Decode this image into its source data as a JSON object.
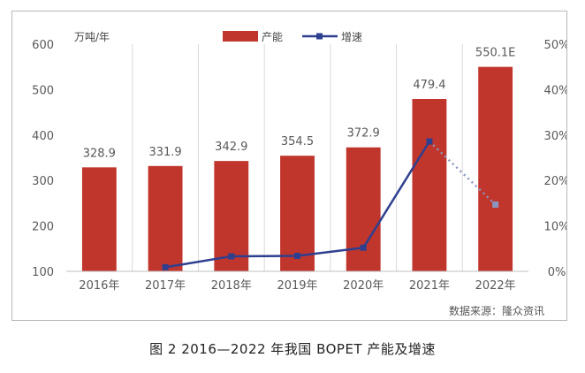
{
  "caption": "图 2  2016—2022 年我国 BOPET 产能及增速",
  "source": "数据来源：隆众资讯",
  "colors": {
    "bar": "#c0362c",
    "line": "#2e3f8f",
    "forecast_line": "#8a96c0",
    "grid": "#d9d9d9"
  },
  "chart_data": {
    "type": "bar",
    "categories": [
      "2016年",
      "2017年",
      "2018年",
      "2019年",
      "2020年",
      "2021年",
      "2022年"
    ],
    "series": [
      {
        "name": "产能",
        "type": "bar",
        "axis": "left",
        "values": [
          328.9,
          331.9,
          342.9,
          354.5,
          372.9,
          479.4,
          550.1
        ],
        "labels": [
          "328.9",
          "331.9",
          "342.9",
          "354.5",
          "372.9",
          "479.4",
          "550.1E"
        ]
      },
      {
        "name": "增速",
        "type": "line",
        "axis": "right",
        "values": [
          null,
          0.9,
          3.3,
          3.4,
          5.2,
          28.6,
          14.7
        ],
        "forecast_from_index": 5
      }
    ],
    "ylabel": "万吨/年",
    "ylim": [
      100,
      600
    ],
    "yticks": [
      "100",
      "200",
      "300",
      "400",
      "500",
      "600"
    ],
    "y2lim": [
      0,
      50
    ],
    "y2ticks": [
      "0%",
      "10%",
      "20%",
      "30%",
      "40%",
      "50%"
    ],
    "legend": "top-center",
    "grid": "vertical"
  }
}
